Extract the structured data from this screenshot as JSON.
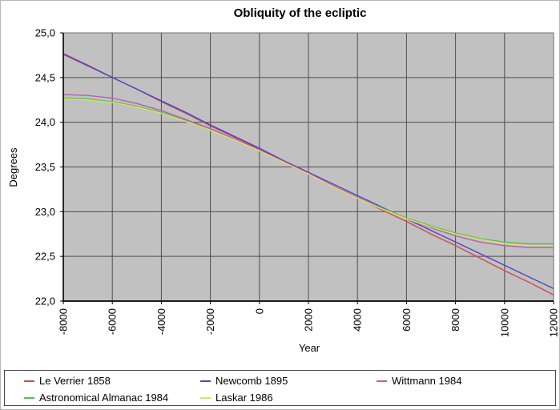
{
  "chart_data": {
    "type": "line",
    "title": "Obliquity of the ecliptic",
    "xlabel": "Year",
    "ylabel": "Degrees",
    "xlim": [
      -8000,
      12000
    ],
    "ylim": [
      22.0,
      25.0
    ],
    "grid": true,
    "plot_bg_color": "#c1c1c1",
    "gridline_color": "#4f4f4f",
    "x_tick_values": [
      -8000,
      -6000,
      -4000,
      -2000,
      0,
      2000,
      4000,
      6000,
      8000,
      10000,
      12000
    ],
    "x_tick_labels": [
      "-8000",
      "-6000",
      "-4000",
      "-2000",
      "0",
      "2000",
      "4000",
      "6000",
      "8000",
      "10000",
      "12000"
    ],
    "y_tick_values": [
      25.0,
      24.5,
      24.0,
      23.5,
      23.0,
      22.5,
      22.0
    ],
    "y_tick_labels": [
      "25,0",
      "24,5",
      "24,0",
      "23,5",
      "23,0",
      "22,5",
      "22,0"
    ],
    "x": [
      -8000,
      -7000,
      -6000,
      -5000,
      -4000,
      -3000,
      -2000,
      -1000,
      0,
      1000,
      2000,
      3000,
      4000,
      5000,
      6000,
      7000,
      8000,
      9000,
      10000,
      11000,
      12000
    ],
    "series": [
      {
        "name": "Le Verrier 1858",
        "color": "#d04a4a",
        "values": [
          24.77,
          24.64,
          24.5,
          24.37,
          24.23,
          24.1,
          23.96,
          23.83,
          23.7,
          23.56,
          23.43,
          23.29,
          23.16,
          23.02,
          22.89,
          22.75,
          22.62,
          22.48,
          22.34,
          22.21,
          22.07
        ]
      },
      {
        "name": "Newcomb 1895",
        "color": "#4848c8",
        "values": [
          24.76,
          24.63,
          24.5,
          24.37,
          24.24,
          24.11,
          23.97,
          23.84,
          23.71,
          23.57,
          23.44,
          23.31,
          23.18,
          23.05,
          22.92,
          22.79,
          22.66,
          22.53,
          22.4,
          22.27,
          22.14
        ]
      },
      {
        "name": "Wittmann 1984",
        "color": "#bb5cb4",
        "values": [
          24.31,
          24.3,
          24.27,
          24.21,
          24.13,
          24.03,
          23.93,
          23.81,
          23.69,
          23.56,
          23.43,
          23.29,
          23.16,
          23.03,
          22.92,
          22.82,
          22.73,
          22.66,
          22.62,
          22.6,
          22.6
        ]
      },
      {
        "name": "Astronomical Almanac 1984",
        "color": "#58c058",
        "values": [
          24.27,
          24.26,
          24.23,
          24.18,
          24.11,
          24.02,
          23.92,
          23.8,
          23.69,
          23.55,
          23.42,
          23.29,
          23.16,
          23.04,
          22.93,
          22.84,
          22.76,
          22.7,
          22.66,
          22.64,
          22.64
        ]
      },
      {
        "name": "Laskar 1986",
        "color": "#e0e060",
        "values": [
          24.26,
          24.25,
          24.22,
          24.17,
          24.1,
          24.01,
          23.91,
          23.8,
          23.68,
          23.55,
          23.42,
          23.28,
          23.15,
          23.03,
          22.92,
          22.83,
          22.75,
          22.69,
          22.64,
          22.62,
          22.62
        ]
      }
    ],
    "draw_order": [
      0,
      1,
      3,
      2,
      4
    ],
    "legend": {
      "position": "bottom",
      "rows": [
        [
          0,
          1,
          2
        ],
        [
          3,
          4
        ]
      ],
      "column_x": [
        24,
        244,
        464
      ],
      "row_y": [
        3,
        24
      ]
    }
  }
}
